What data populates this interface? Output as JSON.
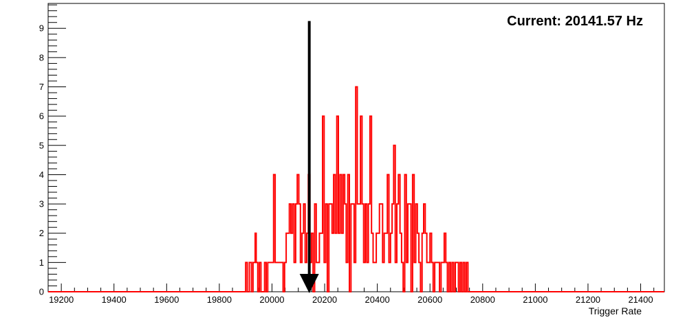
{
  "chart_data": {
    "type": "histogram",
    "title": "",
    "xlabel": "Trigger Rate",
    "ylabel": "",
    "xlim": [
      19150,
      21490
    ],
    "ylim": [
      0,
      9.85
    ],
    "grid": false,
    "bin_width": 6,
    "x_ticks": [
      "19200",
      "19400",
      "19600",
      "19800",
      "20000",
      "20200",
      "20400",
      "20600",
      "20800",
      "21000",
      "21200",
      "21400"
    ],
    "y_ticks": [
      "0",
      "1",
      "2",
      "3",
      "4",
      "5",
      "6",
      "7",
      "8",
      "9"
    ],
    "series": [
      {
        "color": "#ff0000",
        "bins": [
          [
            19900,
            1
          ],
          [
            19906,
            0
          ],
          [
            19914,
            1
          ],
          [
            19922,
            0
          ],
          [
            19928,
            1
          ],
          [
            19936,
            2
          ],
          [
            19940,
            1
          ],
          [
            19946,
            0
          ],
          [
            19952,
            1
          ],
          [
            19958,
            0
          ],
          [
            19966,
            0
          ],
          [
            19972,
            1
          ],
          [
            19978,
            0
          ],
          [
            19984,
            1
          ],
          [
            19996,
            1
          ],
          [
            20006,
            4
          ],
          [
            20012,
            1
          ],
          [
            20020,
            1
          ],
          [
            20036,
            1
          ],
          [
            20042,
            0
          ],
          [
            20048,
            1
          ],
          [
            20054,
            2
          ],
          [
            20060,
            2
          ],
          [
            20066,
            3
          ],
          [
            20072,
            2
          ],
          [
            20078,
            3
          ],
          [
            20084,
            1
          ],
          [
            20090,
            3
          ],
          [
            20096,
            4
          ],
          [
            20102,
            3
          ],
          [
            20108,
            1
          ],
          [
            20114,
            2
          ],
          [
            20120,
            3
          ],
          [
            20126,
            1
          ],
          [
            20132,
            2
          ],
          [
            20138,
            4
          ],
          [
            20144,
            1
          ],
          [
            20150,
            2
          ],
          [
            20156,
            0
          ],
          [
            20162,
            3
          ],
          [
            20168,
            1
          ],
          [
            20174,
            1
          ],
          [
            20180,
            2
          ],
          [
            20186,
            2
          ],
          [
            20192,
            6
          ],
          [
            20198,
            1
          ],
          [
            20204,
            3
          ],
          [
            20210,
            0
          ],
          [
            20216,
            3
          ],
          [
            20222,
            3
          ],
          [
            20228,
            2
          ],
          [
            20234,
            4
          ],
          [
            20240,
            2
          ],
          [
            20246,
            6
          ],
          [
            20252,
            2
          ],
          [
            20258,
            4
          ],
          [
            20264,
            2
          ],
          [
            20270,
            4
          ],
          [
            20276,
            3
          ],
          [
            20282,
            1
          ],
          [
            20288,
            4
          ],
          [
            20294,
            0
          ],
          [
            20300,
            3
          ],
          [
            20306,
            3
          ],
          [
            20312,
            1
          ],
          [
            20318,
            7
          ],
          [
            20324,
            3
          ],
          [
            20330,
            3
          ],
          [
            20336,
            6
          ],
          [
            20342,
            3
          ],
          [
            20348,
            1
          ],
          [
            20354,
            3
          ],
          [
            20360,
            1
          ],
          [
            20366,
            3
          ],
          [
            20372,
            6
          ],
          [
            20378,
            2
          ],
          [
            20384,
            1
          ],
          [
            20390,
            1
          ],
          [
            20396,
            2
          ],
          [
            20402,
            2
          ],
          [
            20408,
            3
          ],
          [
            20414,
            3
          ],
          [
            20420,
            1
          ],
          [
            20426,
            2
          ],
          [
            20432,
            2
          ],
          [
            20438,
            4
          ],
          [
            20444,
            1
          ],
          [
            20450,
            2
          ],
          [
            20456,
            3
          ],
          [
            20462,
            5
          ],
          [
            20468,
            1
          ],
          [
            20474,
            3
          ],
          [
            20480,
            4
          ],
          [
            20486,
            2
          ],
          [
            20492,
            1
          ],
          [
            20498,
            0
          ],
          [
            20504,
            4
          ],
          [
            20510,
            1
          ],
          [
            20516,
            3
          ],
          [
            20522,
            3
          ],
          [
            20528,
            0
          ],
          [
            20534,
            4
          ],
          [
            20540,
            1
          ],
          [
            20546,
            3
          ],
          [
            20552,
            2
          ],
          [
            20558,
            1
          ],
          [
            20564,
            0
          ],
          [
            20570,
            2
          ],
          [
            20576,
            3
          ],
          [
            20582,
            2
          ],
          [
            20588,
            1
          ],
          [
            20594,
            1
          ],
          [
            20600,
            2
          ],
          [
            20606,
            1
          ],
          [
            20612,
            0
          ],
          [
            20618,
            1
          ],
          [
            20624,
            1
          ],
          [
            20630,
            1
          ],
          [
            20636,
            0
          ],
          [
            20642,
            1
          ],
          [
            20648,
            1
          ],
          [
            20654,
            2
          ],
          [
            20660,
            1
          ],
          [
            20666,
            0
          ],
          [
            20672,
            1
          ],
          [
            20678,
            0
          ],
          [
            20684,
            1
          ],
          [
            20690,
            0
          ],
          [
            20696,
            1
          ],
          [
            20702,
            1
          ],
          [
            20708,
            0
          ],
          [
            20714,
            1
          ],
          [
            20720,
            0
          ],
          [
            20726,
            1
          ],
          [
            20732,
            0
          ],
          [
            20738,
            1
          ]
        ]
      }
    ],
    "annotations": {
      "current_text": "Current: 20141.57 Hz",
      "current_value": 20141.57,
      "arrow": {
        "from_y": 9.25,
        "to_y": 0
      }
    }
  }
}
